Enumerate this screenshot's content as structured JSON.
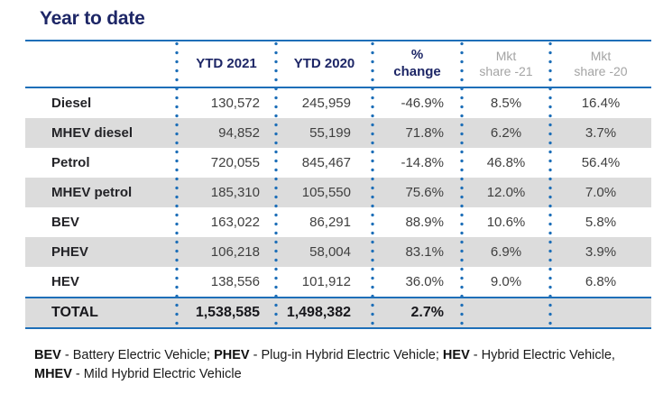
{
  "title": "Year to date",
  "colors": {
    "navy_text": "#1d2666",
    "line_blue": "#1e6fb8",
    "alt_row_gray": "#dcdcdc",
    "muted_header_gray": "#a4a4a4",
    "value_text_gray": "#3f3f3f"
  },
  "table": {
    "headers": {
      "label": "",
      "ytd2021": "YTD 2021",
      "ytd2020": "YTD 2020",
      "change": "%\nchange",
      "mkt21": "Mkt\nshare -21",
      "mkt20": "Mkt\nshare -20"
    },
    "rows": [
      {
        "label": "Diesel",
        "ytd2021": "130,572",
        "ytd2020": "245,959",
        "change": "-46.9%",
        "mkt21": "8.5%",
        "mkt20": "16.4%"
      },
      {
        "label": "MHEV diesel",
        "ytd2021": "94,852",
        "ytd2020": "55,199",
        "change": "71.8%",
        "mkt21": "6.2%",
        "mkt20": "3.7%"
      },
      {
        "label": "Petrol",
        "ytd2021": "720,055",
        "ytd2020": "845,467",
        "change": "-14.8%",
        "mkt21": "46.8%",
        "mkt20": "56.4%"
      },
      {
        "label": "MHEV petrol",
        "ytd2021": "185,310",
        "ytd2020": "105,550",
        "change": "75.6%",
        "mkt21": "12.0%",
        "mkt20": "7.0%"
      },
      {
        "label": "BEV",
        "ytd2021": "163,022",
        "ytd2020": "86,291",
        "change": "88.9%",
        "mkt21": "10.6%",
        "mkt20": "5.8%"
      },
      {
        "label": "PHEV",
        "ytd2021": "106,218",
        "ytd2020": "58,004",
        "change": "83.1%",
        "mkt21": "6.9%",
        "mkt20": "3.9%"
      },
      {
        "label": "HEV",
        "ytd2021": "138,556",
        "ytd2020": "101,912",
        "change": "36.0%",
        "mkt21": "9.0%",
        "mkt20": "6.8%"
      }
    ],
    "total": {
      "label": "TOTAL",
      "ytd2021": "1,538,585",
      "ytd2020": "1,498,382",
      "change": "2.7%",
      "mkt21": "",
      "mkt20": ""
    }
  },
  "footnote": {
    "line1": [
      {
        "abbr": "BEV",
        "text": " - Battery Electric Vehicle; "
      },
      {
        "abbr": "PHEV",
        "text": " - Plug-in Hybrid Electric Vehicle; "
      },
      {
        "abbr": "HEV",
        "text": " - Hybrid Electric Vehicle,"
      }
    ],
    "line2": [
      {
        "abbr": "MHEV",
        "text": " - Mild Hybrid Electric Vehicle"
      }
    ]
  }
}
